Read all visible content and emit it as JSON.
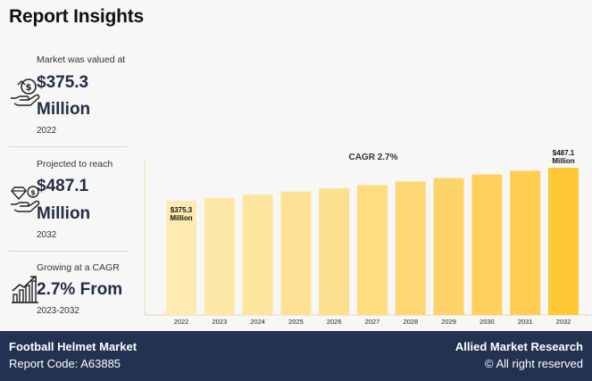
{
  "header": {
    "title": "Report Insights"
  },
  "insights": [
    {
      "caption": "Market was valued at",
      "value_line1": "$375.3",
      "value_line2": "Million",
      "year": "2022",
      "icon": "money-hand-icon"
    },
    {
      "caption": "Projected to reach",
      "value_line1": "$487.1",
      "value_line2": "Million",
      "year": "2032",
      "icon": "diamond-hand-icon"
    },
    {
      "caption": "Growing at a CAGR",
      "value_line1": "2.7% From",
      "year": "2023-2032",
      "icon": "growth-chart-icon"
    }
  ],
  "chart_data": {
    "type": "bar",
    "title": "CAGR 2.7%",
    "categories": [
      "2022",
      "2023",
      "2024",
      "2025",
      "2026",
      "2027",
      "2028",
      "2029",
      "2030",
      "2031",
      "2032"
    ],
    "values": [
      375.3,
      385.4,
      395.8,
      406.5,
      417.5,
      428.7,
      440.3,
      452.2,
      464.4,
      476.9,
      487.1
    ],
    "data_labels": [
      {
        "index": 0,
        "line1": "$375.3",
        "line2": "Million"
      },
      {
        "index": 10,
        "line1": "$487.1",
        "line2": "Million"
      }
    ],
    "colors": [
      "#fdebb2",
      "#fde8a8",
      "#fde59e",
      "#fde295",
      "#fde08d",
      "#fedc80",
      "#fed775",
      "#fed369",
      "#fed05d",
      "#fecd52",
      "#ffc935"
    ],
    "ylim": [
      0,
      500
    ],
    "grid": false
  },
  "footer": {
    "market": "Football Helmet Market",
    "report_code": "Report Code: A63885",
    "brand": "Allied Market Research",
    "rights": "© All right reserved"
  }
}
